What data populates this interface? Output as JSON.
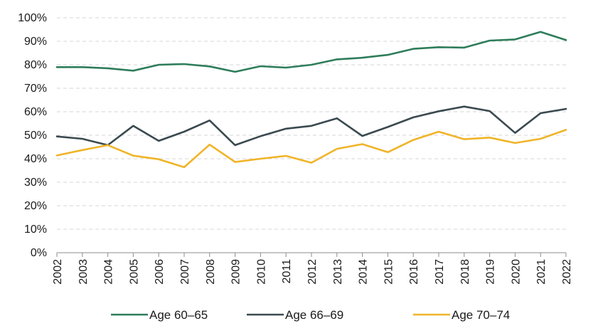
{
  "chart_data": {
    "type": "line",
    "title": "",
    "xlabel": "",
    "ylabel": "",
    "ylim": [
      0,
      100
    ],
    "y_ticks": [
      "0%",
      "10%",
      "20%",
      "30%",
      "40%",
      "50%",
      "60%",
      "70%",
      "80%",
      "90%",
      "100%"
    ],
    "categories": [
      "2002",
      "2003",
      "2004",
      "2005",
      "2006",
      "2007",
      "2008",
      "2009",
      "2010",
      "2011",
      "2012",
      "2013",
      "2014",
      "2015",
      "2016",
      "2017",
      "2018",
      "2019",
      "2020",
      "2021",
      "2022"
    ],
    "grid": true,
    "legend_position": "bottom",
    "series": [
      {
        "name": "Age 60–65",
        "color": "#2e7d5b",
        "values": [
          79,
          79,
          78.5,
          77.5,
          80,
          80.3,
          79.3,
          77,
          79.4,
          78.8,
          80,
          82.3,
          83,
          84.2,
          86.8,
          87.5,
          87.3,
          90.3,
          90.8,
          94,
          90.5
        ]
      },
      {
        "name": "Age 66–69",
        "color": "#3a4a50",
        "values": [
          49.5,
          48.5,
          45.8,
          54,
          47.6,
          51.5,
          56.3,
          45.8,
          49.6,
          52.8,
          54,
          57.2,
          49.7,
          53.5,
          57.6,
          60.2,
          62.2,
          60.3,
          51,
          59.4,
          61.2
        ]
      },
      {
        "name": "Age 70–74",
        "color": "#f0b428",
        "values": [
          41.4,
          43.7,
          45.8,
          41.3,
          39.8,
          36.4,
          46,
          38.6,
          40,
          41.2,
          38.3,
          44.2,
          46.2,
          42.8,
          48,
          51.5,
          48.3,
          49,
          46.7,
          48.5,
          52.3
        ]
      }
    ]
  }
}
